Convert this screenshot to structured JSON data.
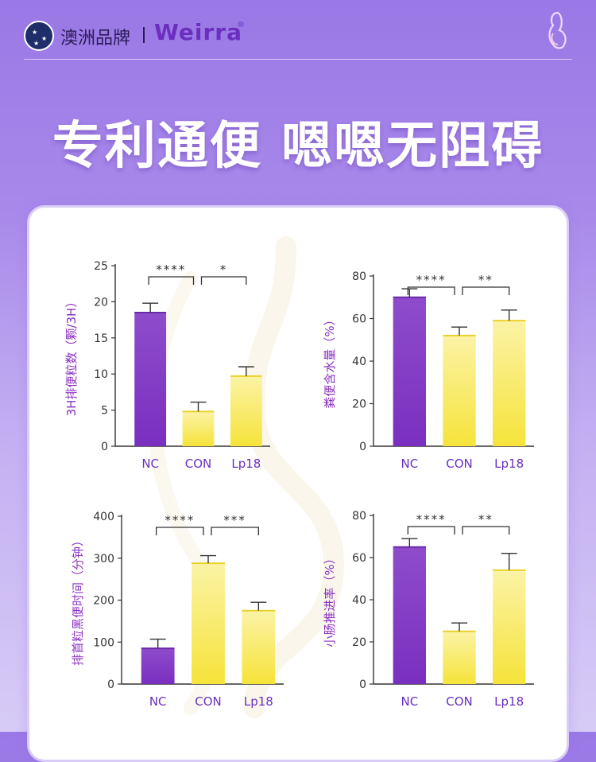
{
  "header": {
    "brand_cn": "澳洲品牌",
    "brand_en": "Weirra",
    "reg_mark": "®"
  },
  "headline": "专利通便 嗯嗯无阻碍",
  "colors": {
    "purple_bar": "#8a44c8",
    "yellow_bar": "#f6e54a",
    "axis": "#333333",
    "ylabel": "#8b2fc0"
  },
  "chart_data": [
    {
      "type": "bar",
      "categories": [
        "NC",
        "CON",
        "Lp18"
      ],
      "values": [
        18.5,
        4.8,
        9.7
      ],
      "errors": [
        1.3,
        1.3,
        1.3
      ],
      "ylabel": "3H排便粒数（颗/3H）",
      "ylim": [
        0,
        25
      ],
      "yticks": [
        0,
        5,
        10,
        15,
        20,
        25
      ],
      "bar_colors": [
        "purple",
        "yellow",
        "yellow"
      ],
      "significance": [
        {
          "from": 0,
          "to": 1,
          "label": "****"
        },
        {
          "from": 1,
          "to": 2,
          "label": "*"
        }
      ]
    },
    {
      "type": "bar",
      "categories": [
        "NC",
        "CON",
        "Lp18"
      ],
      "values": [
        70,
        52,
        59
      ],
      "errors": [
        4,
        4,
        5
      ],
      "ylabel": "粪便含水量（%）",
      "ylim": [
        0,
        80
      ],
      "yticks": [
        0,
        20,
        40,
        60,
        80
      ],
      "bar_colors": [
        "purple",
        "yellow",
        "yellow"
      ],
      "significance": [
        {
          "from": 0,
          "to": 1,
          "label": "****"
        },
        {
          "from": 1,
          "to": 2,
          "label": "**"
        }
      ]
    },
    {
      "type": "bar",
      "categories": [
        "NC",
        "CON",
        "Lp18"
      ],
      "values": [
        85,
        288,
        175
      ],
      "errors": [
        22,
        18,
        20
      ],
      "ylabel": "排首粒黑便时间（分钟）",
      "ylim": [
        0,
        400
      ],
      "yticks": [
        0,
        100,
        200,
        300,
        400
      ],
      "bar_colors": [
        "purple",
        "yellow",
        "yellow"
      ],
      "significance": [
        {
          "from": 0,
          "to": 1,
          "label": "****"
        },
        {
          "from": 1,
          "to": 2,
          "label": "***"
        }
      ]
    },
    {
      "type": "bar",
      "categories": [
        "NC",
        "CON",
        "Lp18"
      ],
      "values": [
        65,
        25,
        54
      ],
      "errors": [
        4,
        4,
        8
      ],
      "ylabel": "小肠推进率（%）",
      "ylim": [
        0,
        80
      ],
      "yticks": [
        0,
        20,
        40,
        60,
        80
      ],
      "bar_colors": [
        "purple",
        "yellow",
        "yellow"
      ],
      "significance": [
        {
          "from": 0,
          "to": 1,
          "label": "****"
        },
        {
          "from": 1,
          "to": 2,
          "label": "**"
        }
      ]
    }
  ]
}
